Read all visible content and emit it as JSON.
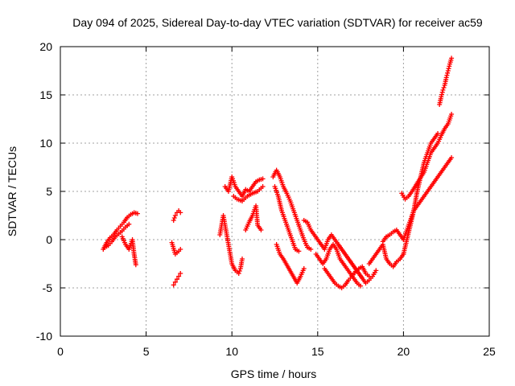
{
  "chart_data": {
    "type": "scatter",
    "title": "Day 094 of 2025, Sidereal Day-to-day VTEC variation (SDTVAR) for receiver ac59",
    "xlabel": "GPS time / hours",
    "ylabel": "SDTVAR / TECUs",
    "xlim": [
      0,
      25
    ],
    "ylim": [
      -10,
      20
    ],
    "xticks": [
      0,
      5,
      10,
      15,
      20,
      25
    ],
    "yticks": [
      -10,
      -5,
      0,
      5,
      10,
      15,
      20
    ],
    "xtick_labels": [
      "0",
      "5",
      "10",
      "15",
      "20",
      "25"
    ],
    "ytick_labels": [
      "-10",
      "-5",
      "0",
      "5",
      "10",
      "15",
      "20"
    ],
    "grid": true,
    "marker": "+",
    "series_color": "#ff0000",
    "segments": [
      {
        "name": "arc-1",
        "points": [
          [
            2.5,
            -1.0
          ],
          [
            2.7,
            -0.3
          ],
          [
            2.9,
            0.2
          ],
          [
            3.1,
            0.5
          ],
          [
            3.3,
            1.0
          ],
          [
            3.5,
            1.4
          ],
          [
            3.7,
            1.8
          ],
          [
            3.9,
            2.3
          ],
          [
            4.1,
            2.6
          ],
          [
            4.3,
            2.8
          ],
          [
            4.5,
            2.7
          ]
        ]
      },
      {
        "name": "arc-1-lower",
        "points": [
          [
            2.6,
            -0.8
          ],
          [
            2.8,
            -0.6
          ],
          [
            3.0,
            -0.2
          ],
          [
            3.2,
            0.3
          ],
          [
            3.4,
            0.6
          ],
          [
            3.6,
            0.9
          ],
          [
            3.8,
            1.3
          ],
          [
            4.0,
            1.6
          ]
        ]
      },
      {
        "name": "arc-1-tail",
        "points": [
          [
            3.6,
            0.3
          ],
          [
            3.8,
            -0.5
          ],
          [
            4.0,
            -1.0
          ],
          [
            4.2,
            0.0
          ],
          [
            4.3,
            -1.5
          ],
          [
            4.4,
            -2.6
          ]
        ]
      },
      {
        "name": "arc-2",
        "points": [
          [
            6.6,
            -4.7
          ],
          [
            6.7,
            -4.4
          ],
          [
            6.8,
            -4.1
          ],
          [
            6.9,
            -3.8
          ],
          [
            7.0,
            -3.5
          ]
        ]
      },
      {
        "name": "arc-2-mid",
        "points": [
          [
            6.5,
            -0.3
          ],
          [
            6.7,
            -1.5
          ],
          [
            6.9,
            -1.2
          ],
          [
            7.0,
            -1.0
          ]
        ]
      },
      {
        "name": "arc-2-top",
        "points": [
          [
            6.6,
            2.0
          ],
          [
            6.7,
            2.5
          ],
          [
            6.8,
            2.8
          ],
          [
            6.9,
            3.0
          ],
          [
            7.0,
            2.8
          ]
        ]
      },
      {
        "name": "arc-3-rise",
        "points": [
          [
            9.3,
            0.5
          ],
          [
            9.4,
            1.5
          ],
          [
            9.5,
            2.5
          ],
          [
            9.6,
            1.5
          ],
          [
            9.7,
            0.5
          ],
          [
            9.8,
            -0.5
          ],
          [
            9.9,
            -1.5
          ],
          [
            10.0,
            -2.5
          ],
          [
            10.2,
            -3.2
          ],
          [
            10.4,
            -3.5
          ],
          [
            10.5,
            -3.0
          ],
          [
            10.6,
            -2.0
          ]
        ]
      },
      {
        "name": "arc-3-top",
        "points": [
          [
            9.6,
            5.5
          ],
          [
            9.8,
            5.0
          ],
          [
            10.0,
            6.5
          ],
          [
            10.2,
            5.5
          ],
          [
            10.4,
            5.0
          ],
          [
            10.6,
            4.5
          ],
          [
            10.8,
            5.2
          ],
          [
            11.0,
            5.0
          ],
          [
            11.2,
            5.5
          ],
          [
            11.4,
            6.0
          ],
          [
            11.6,
            6.2
          ],
          [
            11.8,
            6.3
          ]
        ]
      },
      {
        "name": "arc-3-band",
        "points": [
          [
            10.1,
            4.5
          ],
          [
            10.3,
            4.2
          ],
          [
            10.6,
            4.0
          ],
          [
            10.9,
            4.5
          ],
          [
            11.2,
            4.8
          ],
          [
            11.5,
            5.0
          ],
          [
            11.8,
            5.5
          ]
        ]
      },
      {
        "name": "arc-3-drop",
        "points": [
          [
            10.8,
            1.0
          ],
          [
            11.0,
            1.8
          ],
          [
            11.2,
            2.5
          ],
          [
            11.4,
            3.5
          ],
          [
            11.5,
            1.5
          ],
          [
            11.7,
            1.0
          ]
        ]
      },
      {
        "name": "arc-4",
        "points": [
          [
            12.4,
            6.5
          ],
          [
            12.6,
            7.2
          ],
          [
            12.8,
            6.5
          ],
          [
            13.0,
            5.5
          ],
          [
            13.2,
            4.8
          ],
          [
            13.4,
            4.0
          ],
          [
            13.6,
            3.0
          ],
          [
            13.8,
            2.0
          ],
          [
            14.0,
            1.0
          ],
          [
            14.2,
            0.0
          ],
          [
            14.4,
            -0.8
          ],
          [
            14.6,
            -1.0
          ]
        ]
      },
      {
        "name": "arc-4-lower",
        "points": [
          [
            12.5,
            5.5
          ],
          [
            12.7,
            4.5
          ],
          [
            12.9,
            3.0
          ],
          [
            13.1,
            2.0
          ],
          [
            13.3,
            1.0
          ],
          [
            13.5,
            0.0
          ],
          [
            13.7,
            -1.0
          ],
          [
            13.9,
            -1.2
          ]
        ]
      },
      {
        "name": "arc-4-spur",
        "points": [
          [
            12.6,
            -0.5
          ],
          [
            12.8,
            -1.5
          ],
          [
            13.0,
            -2.0
          ],
          [
            13.8,
            -4.5
          ],
          [
            14.0,
            -3.8
          ],
          [
            14.2,
            -3.0
          ]
        ]
      },
      {
        "name": "arc-4-hump",
        "points": [
          [
            14.2,
            2.0
          ],
          [
            14.4,
            1.8
          ],
          [
            14.6,
            1.0
          ],
          [
            14.8,
            0.5
          ],
          [
            15.0,
            0.0
          ],
          [
            15.2,
            -0.5
          ]
        ]
      },
      {
        "name": "arc-5",
        "points": [
          [
            14.9,
            -1.5
          ],
          [
            15.1,
            -2.0
          ],
          [
            15.3,
            -2.5
          ],
          [
            15.5,
            -2.0
          ],
          [
            15.7,
            -1.0
          ],
          [
            15.9,
            -0.5
          ],
          [
            16.1,
            -1.0
          ],
          [
            16.3,
            -2.0
          ],
          [
            16.5,
            -2.5
          ],
          [
            16.7,
            -3.0
          ],
          [
            16.9,
            -3.5
          ],
          [
            17.1,
            -4.0
          ],
          [
            17.3,
            -4.5
          ],
          [
            17.5,
            -4.8
          ]
        ]
      },
      {
        "name": "arc-5-band",
        "points": [
          [
            15.4,
            -3.0
          ],
          [
            15.6,
            -3.5
          ],
          [
            15.8,
            -4.0
          ],
          [
            16.0,
            -4.5
          ],
          [
            16.2,
            -4.8
          ],
          [
            16.4,
            -5.0
          ],
          [
            16.6,
            -4.7
          ],
          [
            16.8,
            -4.2
          ],
          [
            17.0,
            -3.8
          ],
          [
            17.2,
            -3.3
          ],
          [
            17.4,
            -3.0
          ],
          [
            17.6,
            -2.8
          ],
          [
            17.8,
            -3.5
          ],
          [
            18.0,
            -3.8
          ]
        ]
      },
      {
        "name": "arc-5-low",
        "points": [
          [
            15.2,
            -0.5
          ],
          [
            15.4,
            -1.0
          ],
          [
            15.6,
            0.0
          ],
          [
            15.8,
            0.5
          ],
          [
            16.0,
            0.0
          ],
          [
            16.2,
            -0.5
          ],
          [
            17.6,
            -4.0
          ],
          [
            17.8,
            -4.5
          ],
          [
            18.0,
            -4.2
          ],
          [
            18.2,
            -3.8
          ],
          [
            18.4,
            -3.2
          ]
        ]
      },
      {
        "name": "arc-6",
        "points": [
          [
            18.0,
            -2.5
          ],
          [
            18.2,
            -2.0
          ],
          [
            18.4,
            -1.5
          ],
          [
            18.6,
            -1.0
          ],
          [
            18.8,
            -0.5
          ],
          [
            19.0,
            -2.0
          ],
          [
            19.2,
            -2.5
          ],
          [
            19.4,
            -2.8
          ],
          [
            19.6,
            -2.3
          ],
          [
            19.8,
            -2.0
          ],
          [
            20.0,
            -1.5
          ]
        ]
      },
      {
        "name": "arc-6-upper",
        "points": [
          [
            18.8,
            -0.2
          ],
          [
            19.0,
            0.3
          ],
          [
            19.2,
            0.5
          ],
          [
            19.4,
            0.8
          ],
          [
            19.6,
            1.0
          ],
          [
            19.8,
            0.5
          ],
          [
            20.0,
            0.0
          ]
        ]
      },
      {
        "name": "arc-7",
        "points": [
          [
            20.0,
            -1.5
          ],
          [
            20.2,
            0.0
          ],
          [
            20.4,
            1.5
          ],
          [
            20.6,
            3.0
          ],
          [
            20.8,
            5.0
          ],
          [
            21.0,
            6.5
          ],
          [
            21.2,
            8.0
          ],
          [
            21.4,
            9.0
          ],
          [
            21.6,
            10.0
          ],
          [
            21.8,
            10.5
          ],
          [
            22.0,
            11.0
          ]
        ]
      },
      {
        "name": "arc-7-lower",
        "points": [
          [
            20.0,
            0.0
          ],
          [
            20.2,
            1.0
          ],
          [
            20.4,
            2.0
          ],
          [
            20.6,
            3.0
          ],
          [
            20.8,
            3.5
          ],
          [
            21.0,
            4.0
          ],
          [
            21.2,
            4.5
          ],
          [
            21.4,
            5.0
          ],
          [
            21.6,
            5.5
          ],
          [
            21.8,
            6.0
          ],
          [
            22.0,
            6.5
          ],
          [
            22.2,
            7.0
          ],
          [
            22.4,
            7.5
          ],
          [
            22.6,
            8.0
          ],
          [
            22.8,
            8.5
          ]
        ]
      },
      {
        "name": "arc-7-mid",
        "points": [
          [
            19.9,
            4.8
          ],
          [
            20.1,
            4.2
          ],
          [
            20.3,
            4.5
          ],
          [
            20.5,
            5.0
          ],
          [
            21.2,
            7.0
          ],
          [
            21.4,
            8.0
          ],
          [
            21.6,
            9.0
          ],
          [
            21.8,
            9.5
          ],
          [
            22.0,
            10.0
          ],
          [
            22.2,
            10.8
          ],
          [
            22.4,
            11.5
          ],
          [
            22.6,
            12.0
          ],
          [
            22.8,
            13.0
          ]
        ]
      },
      {
        "name": "arc-7-top",
        "points": [
          [
            22.1,
            14.0
          ],
          [
            22.2,
            14.8
          ],
          [
            22.3,
            15.5
          ],
          [
            22.4,
            16.0
          ],
          [
            22.5,
            16.8
          ],
          [
            22.6,
            17.5
          ],
          [
            22.7,
            18.2
          ],
          [
            22.8,
            18.8
          ]
        ]
      }
    ]
  }
}
